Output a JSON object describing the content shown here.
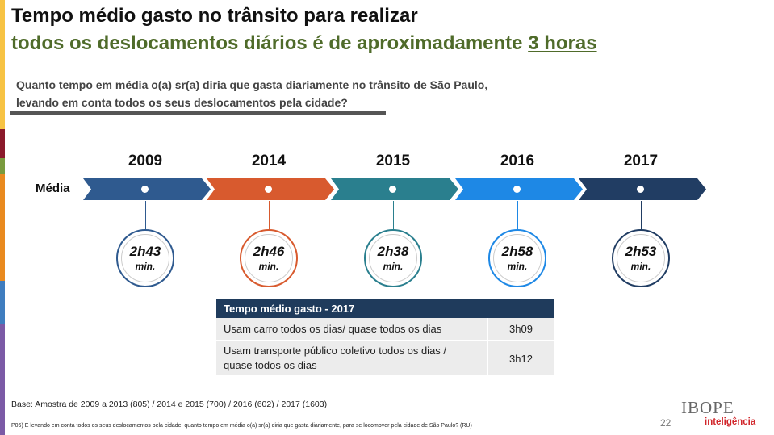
{
  "title": {
    "line1": "Tempo médio gasto no trânsito para realizar",
    "line2_prefix": "todos os deslocamentos diários é de aproximadamente ",
    "line2_highlight": "3 horas"
  },
  "question": {
    "line1": "Quanto tempo em média o(a) sr(a) diria que gasta diariamente no trânsito de São Paulo,",
    "line2": "levando em conta  todos os seus deslocamentos pela cidade?"
  },
  "timeline": {
    "row_label": "Média",
    "entries": [
      {
        "year": "2009",
        "value": "2h43",
        "unit": "min.",
        "color": "#2f5a8f"
      },
      {
        "year": "2014",
        "value": "2h46",
        "unit": "min.",
        "color": "#d85a2e"
      },
      {
        "year": "2015",
        "value": "2h38",
        "unit": "min.",
        "color": "#2a7f8e"
      },
      {
        "year": "2016",
        "value": "2h58",
        "unit": "min.",
        "color": "#1e88e5"
      },
      {
        "year": "2017",
        "value": "2h53",
        "unit": "min.",
        "color": "#213d63"
      }
    ]
  },
  "table": {
    "header": "Tempo médio gasto - 2017",
    "rows": [
      {
        "label": "Usam carro todos os dias/ quase todos os dias",
        "value": "3h09"
      },
      {
        "label_line1": "Usam transporte público coletivo todos os dias /",
        "label_line2": "quase todos os dias",
        "value": "3h12"
      }
    ]
  },
  "base_note": "Base: Amostra de 2009 a 2013 (805) / 2014 e 2015 (700) / 2016 (602) / 2017 (1603)",
  "footnote": "P06) E levando em conta todos os seus deslocamentos pela cidade, quanto tempo em média o(a) sr(a) diria que gasta diariamente, para se locomover pela cidade de São Paulo? (RU)",
  "page_number": "22",
  "logo": {
    "top": "IBOPE",
    "bottom": "inteligência"
  },
  "colors": {
    "title_green": "#4f6b2a",
    "table_header": "#1f3b5c",
    "left_bar": [
      "#f7c344",
      "#8b1a2b",
      "#7a9b3e",
      "#e98a1f",
      "#3f7dbf",
      "#7b5aa6"
    ]
  }
}
